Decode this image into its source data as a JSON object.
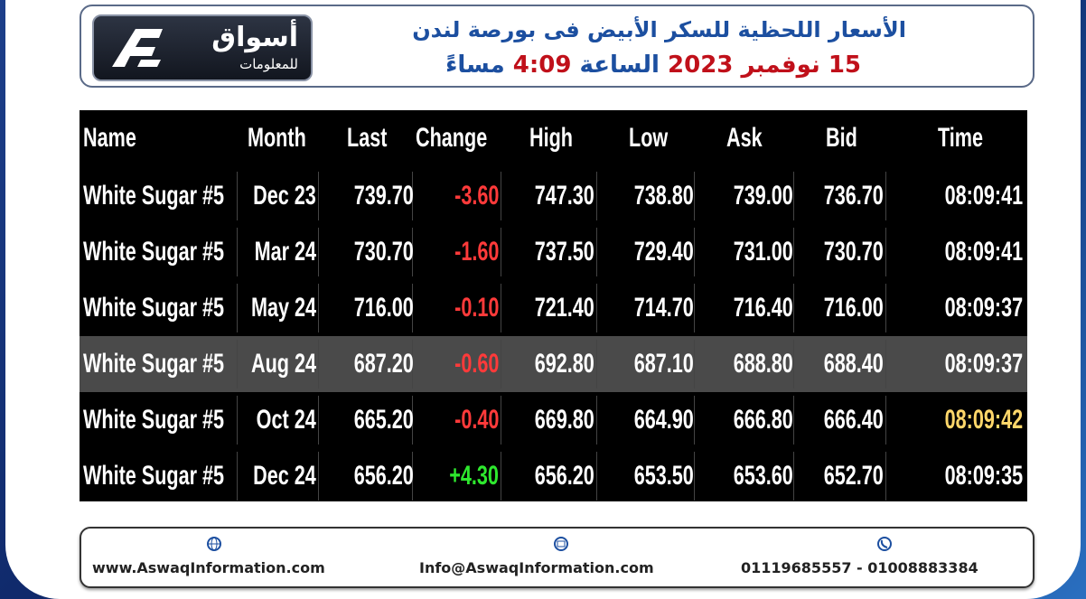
{
  "header": {
    "logo_name": "أسواق",
    "logo_sub": "للمعلومات",
    "title": "الأسعار اللحظية للسكر الأبيض فى بورصة لندن",
    "date": "15 نوفمبر 2023",
    "at": "الساعة",
    "time": "4:09",
    "period": "مساءً"
  },
  "table": {
    "columns": [
      "Name",
      "Month",
      "Last",
      "Change",
      "High",
      "Low",
      "Ask",
      "Bid",
      "Time"
    ],
    "rows": [
      [
        "White Sugar #5",
        "Dec 23",
        "739.70",
        "-3.60",
        "747.30",
        "738.80",
        "739.00",
        "736.70",
        "08:09:41"
      ],
      [
        "White Sugar #5",
        "Mar 24",
        "730.70",
        "-1.60",
        "737.50",
        "729.40",
        "731.00",
        "730.70",
        "08:09:41"
      ],
      [
        "White Sugar #5",
        "May 24",
        "716.00",
        "-0.10",
        "721.40",
        "714.70",
        "716.40",
        "716.00",
        "08:09:37"
      ],
      [
        "White Sugar #5",
        "Aug 24",
        "687.20",
        "-0.60",
        "692.80",
        "687.10",
        "688.80",
        "688.40",
        "08:09:37"
      ],
      [
        "White Sugar #5",
        "Oct 24",
        "665.20",
        "-0.40",
        "669.80",
        "664.90",
        "666.80",
        "666.40",
        "08:09:42"
      ],
      [
        "White Sugar #5",
        "Dec 24",
        "656.20",
        "+4.30",
        "656.20",
        "653.50",
        "653.60",
        "652.70",
        "08:09:35"
      ]
    ]
  },
  "footer": {
    "website": "www.AswaqInformation.com",
    "email": "Info@AswaqInformation.com",
    "phone": "01119685557 - 01008883384"
  }
}
